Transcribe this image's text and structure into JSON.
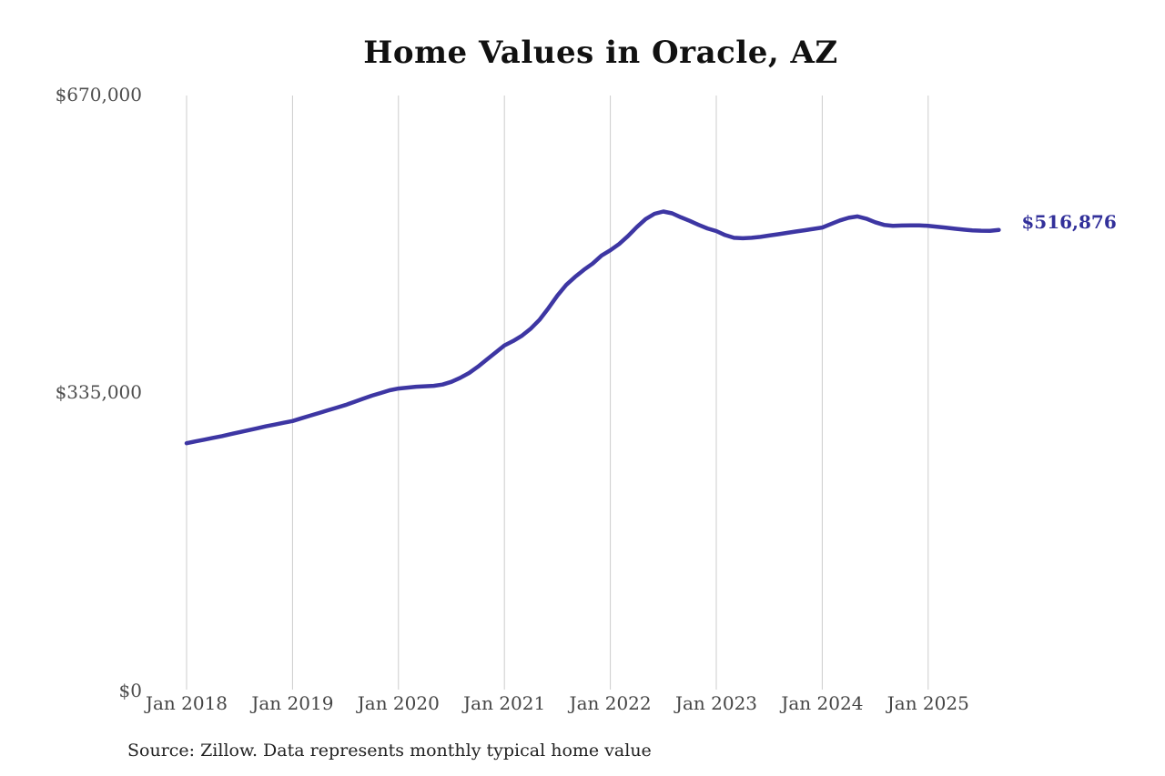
{
  "chart": {
    "title": "Home Values in Oracle, AZ",
    "source": "Source: Zillow. Data represents monthly typical home value",
    "end_label": "$516,876",
    "y_ticks": [
      "$670,000",
      "$335,000",
      "$0"
    ],
    "colors": {
      "line": "#3d36a3",
      "end_label": "#32309a",
      "gridline": "#cccccc",
      "tick_text": "#4a4a4a",
      "title_text": "#111111",
      "source_text": "#222222"
    }
  },
  "chart_data": {
    "type": "line",
    "title": "Home Values in Oracle, AZ",
    "xlabel": "",
    "ylabel": "",
    "ylim": [
      0,
      670000
    ],
    "y_tick_values": [
      0,
      335000,
      670000
    ],
    "y_tick_labels": [
      "$0",
      "$335,000",
      "$670,000"
    ],
    "grid": "vertical-only",
    "legend": "none",
    "x_start": "2018-01",
    "x_end": "2025-09",
    "x_interval": "monthly",
    "latest_value": 516876,
    "latest_value_label": "$516,876",
    "x_ticks": [
      {
        "label": "Jan 2018",
        "month_index": 0
      },
      {
        "label": "Jan 2019",
        "month_index": 12
      },
      {
        "label": "Jan 2020",
        "month_index": 24
      },
      {
        "label": "Jan 2021",
        "month_index": 36
      },
      {
        "label": "Jan 2022",
        "month_index": 48
      },
      {
        "label": "Jan 2023",
        "month_index": 60
      },
      {
        "label": "Jan 2024",
        "month_index": 72
      },
      {
        "label": "Jan 2025",
        "month_index": 84
      }
    ],
    "series": [
      {
        "name": "Typical home value",
        "values": [
          277000,
          279000,
          281000,
          283000,
          285000,
          287200,
          289400,
          291600,
          293800,
          296000,
          298000,
          300000,
          302000,
          305000,
          308000,
          311000,
          314000,
          317000,
          320000,
          323500,
          327000,
          330500,
          333500,
          336500,
          338500,
          339500,
          340500,
          341000,
          341500,
          343000,
          346000,
          350500,
          356000,
          363000,
          371000,
          379000,
          387000,
          392000,
          398000,
          406000,
          416000,
          429000,
          443000,
          455000,
          464000,
          472000,
          479000,
          488000,
          494000,
          501000,
          510000,
          520000,
          529000,
          535000,
          537500,
          535500,
          531000,
          527000,
          522500,
          518500,
          515500,
          511000,
          508000,
          507500,
          508000,
          509000,
          510500,
          512000,
          513500,
          515000,
          516500,
          518000,
          519500,
          523500,
          527500,
          530500,
          532000,
          529500,
          525500,
          522500,
          521500,
          521800,
          522000,
          521900,
          521500,
          520500,
          519400,
          518200,
          517200,
          516400,
          515900,
          515800,
          516876
        ]
      }
    ]
  }
}
